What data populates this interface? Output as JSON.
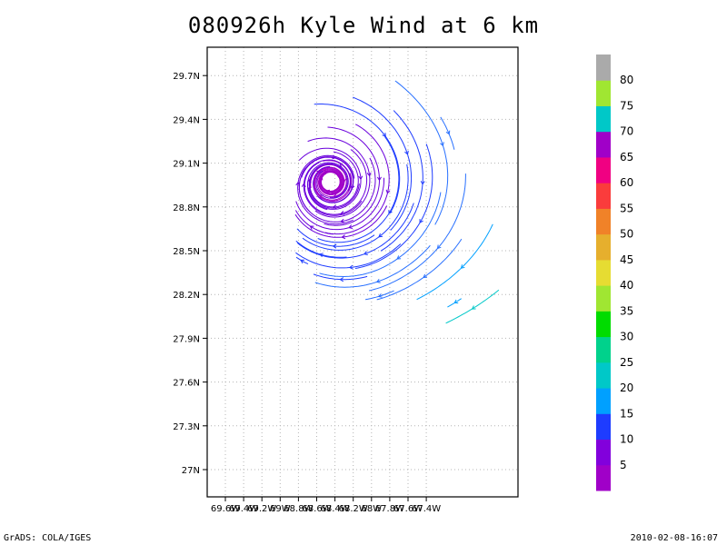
{
  "chart_data": {
    "type": "streamline",
    "title": "080926h Kyle Wind at 6 km",
    "xlabel": "",
    "ylabel": "",
    "x_ticks": [
      "69.6W",
      "69.4W",
      "69.2W",
      "69W",
      "68.8W",
      "68.6W",
      "68.4W",
      "68.2W",
      "68W",
      "67.8W",
      "67.6W",
      "67.4W"
    ],
    "y_ticks": [
      "27N",
      "27.3N",
      "27.6N",
      "27.9N",
      "28.2N",
      "28.5N",
      "28.8N",
      "29.1N",
      "29.4N",
      "29.7N"
    ],
    "grid": true,
    "vortex_center": {
      "lon": -68.45,
      "lat": 28.98
    },
    "colorbar": {
      "labels": [
        "5",
        "10",
        "15",
        "20",
        "25",
        "30",
        "35",
        "40",
        "45",
        "50",
        "55",
        "60",
        "65",
        "70",
        "75",
        "80"
      ],
      "colors": [
        "#a000c8",
        "#8200dc",
        "#1e3cff",
        "#00a0ff",
        "#00c8c8",
        "#00d28c",
        "#00dc00",
        "#a0e632",
        "#e6dc32",
        "#e6af2d",
        "#f08228",
        "#fa3c3c",
        "#f00082",
        "#a000c8",
        "#00c8c8",
        "#a0e632",
        "#aaaaaa"
      ]
    }
  },
  "footer": {
    "left": "GrADS: COLA/IGES",
    "right": "2010-02-08-16:07"
  }
}
